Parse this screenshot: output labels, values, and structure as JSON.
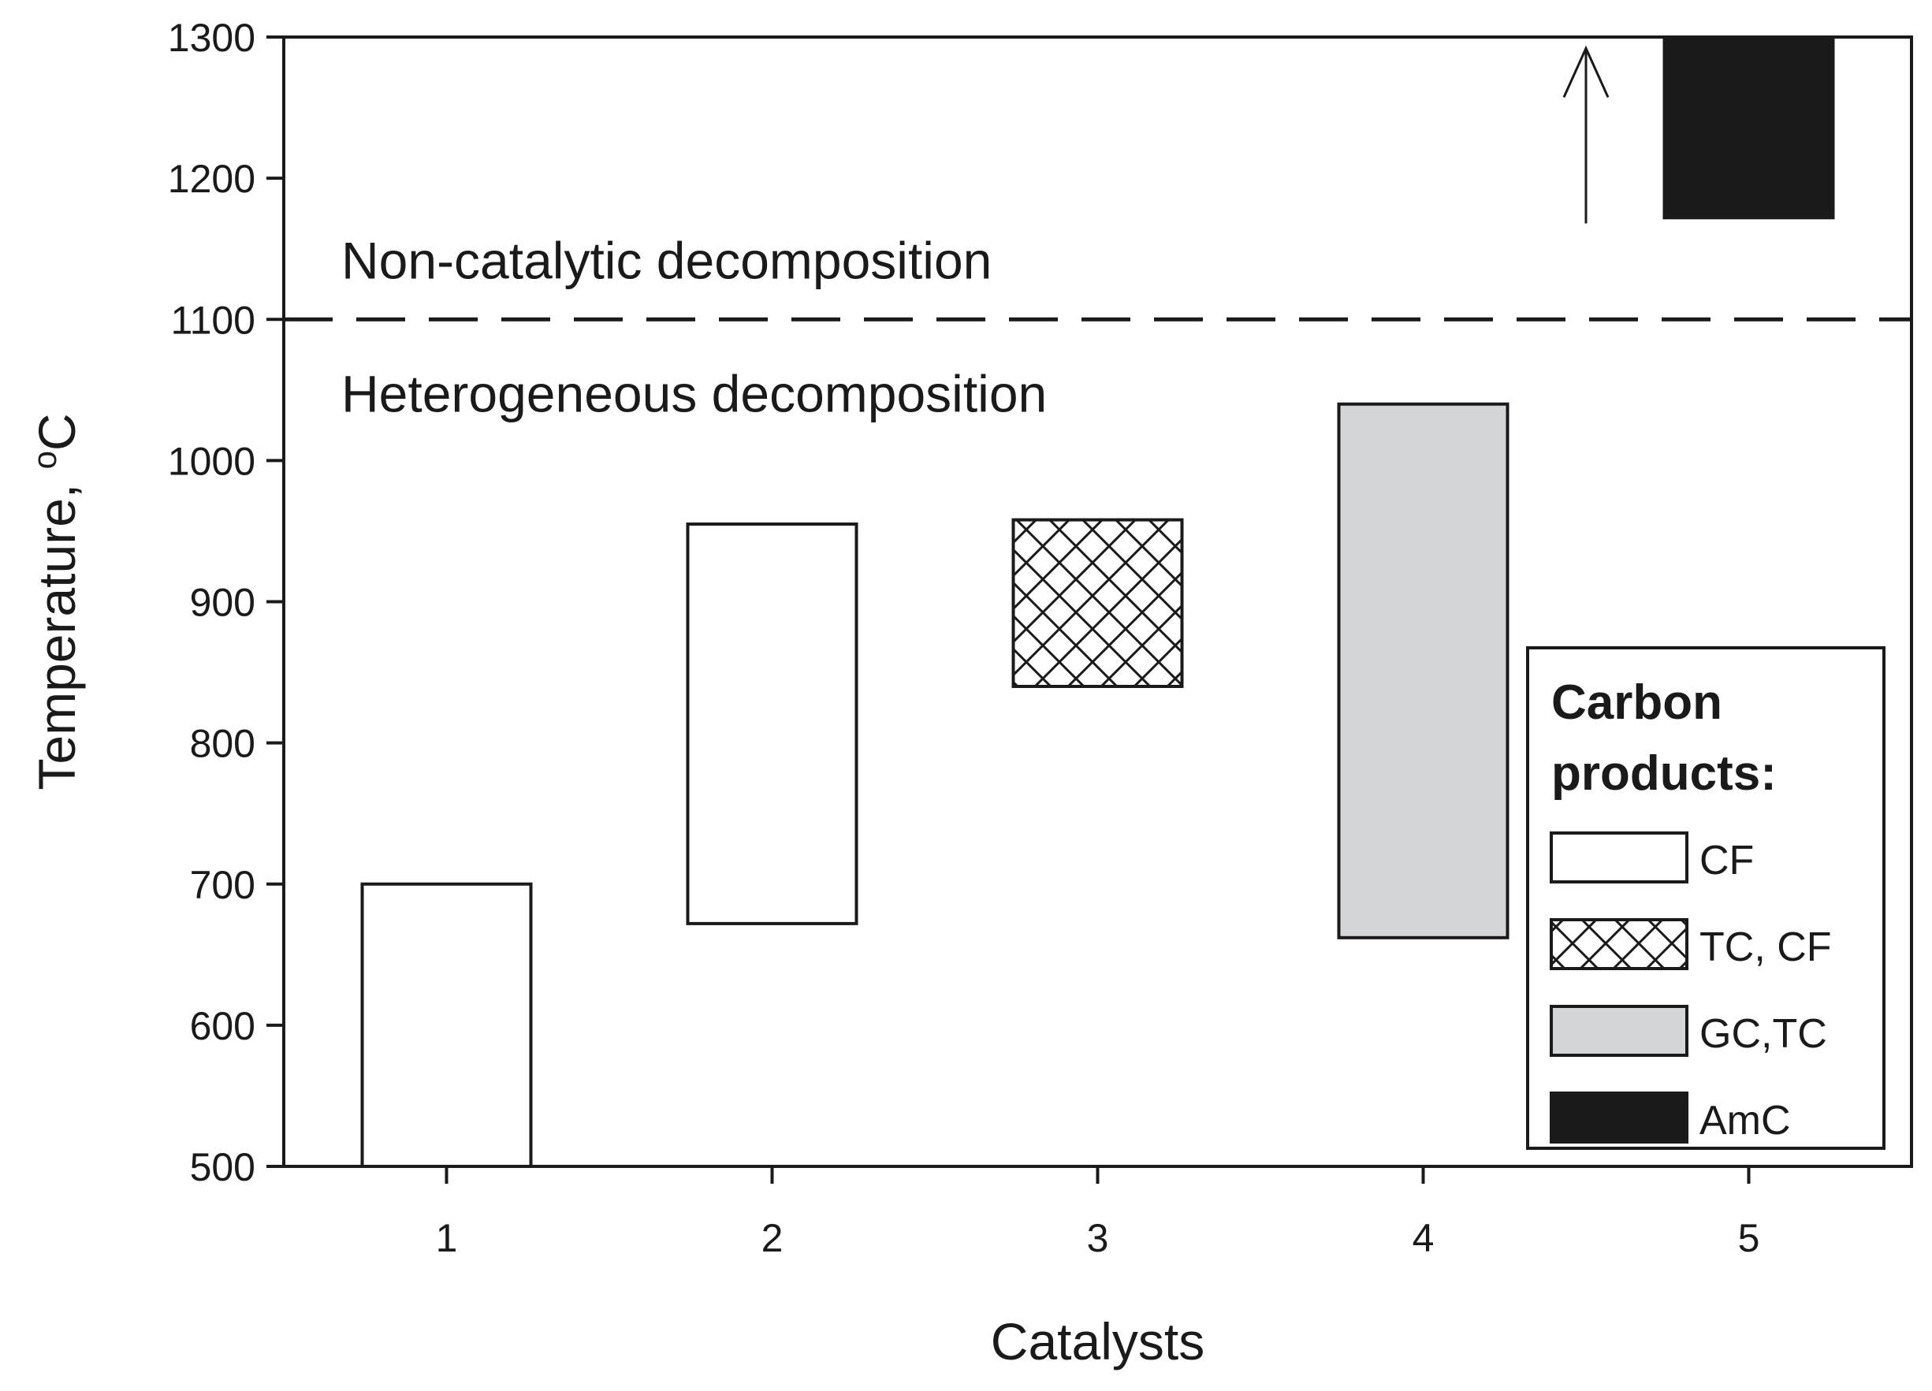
{
  "chart_data": {
    "type": "floating-bar",
    "xlabel": "Catalysts",
    "ylabel": "Temperature, ",
    "ylabel_superscript": "o",
    "ylabel_unit": "C",
    "categories": [
      "1",
      "2",
      "3",
      "4",
      "5"
    ],
    "xlim": [
      0.5,
      5.5
    ],
    "ylim": [
      500,
      1300
    ],
    "yticks": [
      500,
      600,
      700,
      800,
      900,
      1000,
      1100,
      1200,
      1300
    ],
    "bars": [
      {
        "category": "1",
        "low": 500,
        "high": 700,
        "product": "CF"
      },
      {
        "category": "2",
        "low": 672,
        "high": 955,
        "product": "CF"
      },
      {
        "category": "3",
        "low": 840,
        "high": 958,
        "product": "TC, CF"
      },
      {
        "category": "4",
        "low": 662,
        "high": 1040,
        "product": "GC,TC"
      },
      {
        "category": "5",
        "low": 1172,
        "high": 1300,
        "product": "AmC"
      }
    ],
    "threshold_line": {
      "y": 1100,
      "style": "dashed"
    },
    "region_labels": {
      "above": "Non-catalytic decomposition",
      "below": "Heterogeneous decomposition"
    },
    "arrow": {
      "x": 4.5,
      "y_from": 1168,
      "y_to": 1292,
      "direction": "up"
    },
    "legend": {
      "title_line1": "Carbon",
      "title_line2": "products:",
      "placement": "bottom-right",
      "items": [
        {
          "label": "CF",
          "style": "white"
        },
        {
          "label": "TC, CF",
          "style": "crosshatch"
        },
        {
          "label": "GC,TC",
          "style": "gray"
        },
        {
          "label": "AmC",
          "style": "black"
        }
      ]
    },
    "colors": {
      "white": "#ffffff",
      "gray": "#d4d5d7",
      "black": "#1a1a1a",
      "stroke": "#1a1a1a"
    }
  }
}
